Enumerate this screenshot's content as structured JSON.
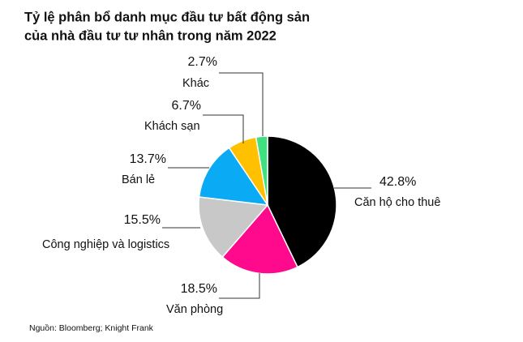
{
  "chart_data": {
    "type": "pie",
    "title": [
      "Tỷ lệ phân bổ danh mục đầu tư bất động sản",
      "của nhà đầu tư tư nhân trong năm 2022"
    ],
    "categories": [
      "Căn hộ cho thuê",
      "Văn phòng",
      "Công nghiệp và logistics",
      "Bán lẻ",
      "Khách sạn",
      "Khác"
    ],
    "values": [
      42.8,
      18.5,
      15.5,
      13.7,
      6.7,
      2.7
    ],
    "value_labels": [
      "42.8%",
      "18.5%",
      "15.5%",
      "13.7%",
      "6.7%",
      "2.7%"
    ],
    "colors": [
      "#000000",
      "#ff0a8c",
      "#c8c8c8",
      "#0aaaf5",
      "#ffc000",
      "#3fe07f"
    ],
    "source": "Nguồn: Bloomberg; Knight Frank"
  }
}
